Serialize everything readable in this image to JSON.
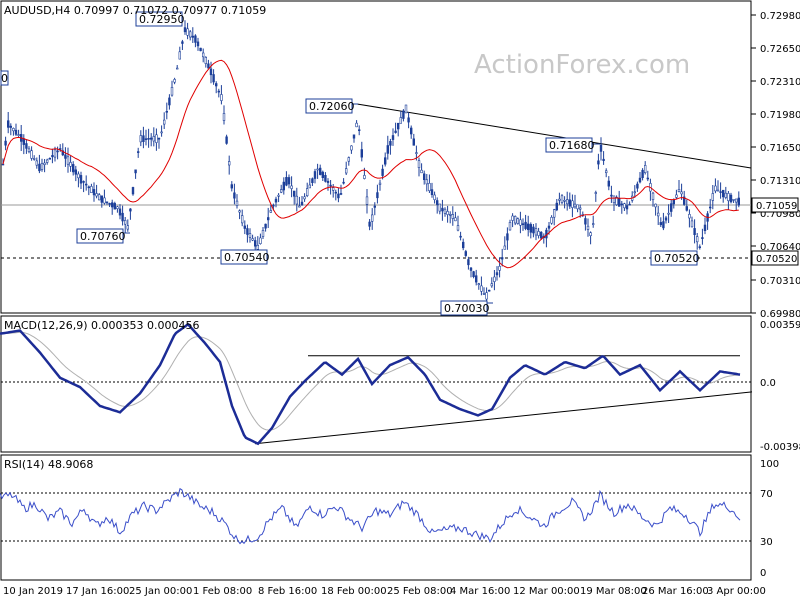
{
  "watermark": "ActionForex.com",
  "colors": {
    "candle": "#1c3f99",
    "sma": "#e00000",
    "macd": "#1c2c96",
    "signal": "#b0b0b0",
    "rsi": "#3a4ec9",
    "grid": "#000000",
    "box_border": "#1c3f99"
  },
  "x_labels": [
    "10 Jan 2019",
    "17 Jan 16:00",
    "25 Jan 00:00",
    "1 Feb 08:00",
    "8 Feb 16:00",
    "18 Feb 00:00",
    "25 Feb 08:00",
    "4 Mar 16:00",
    "12 Mar 00:00",
    "19 Mar 08:00",
    "26 Mar 16:00",
    "3 Apr 00:00"
  ],
  "chart_data": [
    {
      "type": "candlestick",
      "title": "AUDUSD,H4  0.70997 0.71072 0.70977 0.71059",
      "y_ticks": [
        "0.72980",
        "0.72650",
        "0.72310",
        "0.71980",
        "0.71650",
        "0.71310",
        "0.70980",
        "0.70640",
        "0.70310",
        "0.69980"
      ],
      "ylim": [
        0.6995,
        0.7308
      ],
      "current_price": "0.71059",
      "support_line": "0.70520",
      "price_labels": [
        "0.72950",
        "0.72060",
        "0.71680",
        "0.70760",
        "0.70540",
        "0.70520",
        "0.70030"
      ],
      "left_cut_label": "0",
      "ma_label": "",
      "key_points": [
        {
          "x": 0,
          "y": 0.712
        },
        {
          "x": 8,
          "y": 0.7185
        },
        {
          "x": 22,
          "y": 0.717
        },
        {
          "x": 40,
          "y": 0.714
        },
        {
          "x": 60,
          "y": 0.716
        },
        {
          "x": 80,
          "y": 0.713
        },
        {
          "x": 100,
          "y": 0.711
        },
        {
          "x": 118,
          "y": 0.71
        },
        {
          "x": 128,
          "y": 0.708
        },
        {
          "x": 140,
          "y": 0.717
        },
        {
          "x": 160,
          "y": 0.717
        },
        {
          "x": 175,
          "y": 0.723
        },
        {
          "x": 185,
          "y": 0.728
        },
        {
          "x": 196,
          "y": 0.727
        },
        {
          "x": 210,
          "y": 0.724
        },
        {
          "x": 222,
          "y": 0.721
        },
        {
          "x": 232,
          "y": 0.712
        },
        {
          "x": 245,
          "y": 0.708
        },
        {
          "x": 258,
          "y": 0.706
        },
        {
          "x": 272,
          "y": 0.71
        },
        {
          "x": 288,
          "y": 0.713
        },
        {
          "x": 300,
          "y": 0.71
        },
        {
          "x": 318,
          "y": 0.714
        },
        {
          "x": 340,
          "y": 0.711
        },
        {
          "x": 358,
          "y": 0.719
        },
        {
          "x": 370,
          "y": 0.708
        },
        {
          "x": 388,
          "y": 0.716
        },
        {
          "x": 406,
          "y": 0.72
        },
        {
          "x": 420,
          "y": 0.714
        },
        {
          "x": 440,
          "y": 0.71
        },
        {
          "x": 455,
          "y": 0.709
        },
        {
          "x": 470,
          "y": 0.704
        },
        {
          "x": 486,
          "y": 0.701
        },
        {
          "x": 500,
          "y": 0.704
        },
        {
          "x": 512,
          "y": 0.709
        },
        {
          "x": 530,
          "y": 0.708
        },
        {
          "x": 545,
          "y": 0.707
        },
        {
          "x": 560,
          "y": 0.711
        },
        {
          "x": 580,
          "y": 0.71
        },
        {
          "x": 592,
          "y": 0.707
        },
        {
          "x": 600,
          "y": 0.7165
        },
        {
          "x": 612,
          "y": 0.711
        },
        {
          "x": 628,
          "y": 0.71
        },
        {
          "x": 645,
          "y": 0.714
        },
        {
          "x": 662,
          "y": 0.708
        },
        {
          "x": 680,
          "y": 0.712
        },
        {
          "x": 700,
          "y": 0.706
        },
        {
          "x": 715,
          "y": 0.712
        },
        {
          "x": 730,
          "y": 0.711
        },
        {
          "x": 740,
          "y": 0.7106
        }
      ]
    },
    {
      "type": "line",
      "title": "MACD(12,26,9) 0.000353 0.000456",
      "y_ticks": [
        "0.003592",
        "0.0",
        "-0.003986"
      ],
      "ylim": [
        -0.0044,
        0.004
      ],
      "macd_points": [
        {
          "x": 0,
          "y": 0.003
        },
        {
          "x": 20,
          "y": 0.0032
        },
        {
          "x": 40,
          "y": 0.0018
        },
        {
          "x": 60,
          "y": 0.0002
        },
        {
          "x": 80,
          "y": -0.0004
        },
        {
          "x": 100,
          "y": -0.0016
        },
        {
          "x": 120,
          "y": -0.002
        },
        {
          "x": 140,
          "y": -0.0008
        },
        {
          "x": 160,
          "y": 0.001
        },
        {
          "x": 175,
          "y": 0.003
        },
        {
          "x": 188,
          "y": 0.0036
        },
        {
          "x": 205,
          "y": 0.0024
        },
        {
          "x": 220,
          "y": 0.0012
        },
        {
          "x": 232,
          "y": -0.0016
        },
        {
          "x": 245,
          "y": -0.0036
        },
        {
          "x": 258,
          "y": -0.004
        },
        {
          "x": 272,
          "y": -0.003
        },
        {
          "x": 290,
          "y": -0.001
        },
        {
          "x": 305,
          "y": 0.0
        },
        {
          "x": 325,
          "y": 0.0012
        },
        {
          "x": 342,
          "y": 0.0004
        },
        {
          "x": 358,
          "y": 0.0014
        },
        {
          "x": 372,
          "y": -0.0002
        },
        {
          "x": 390,
          "y": 0.001
        },
        {
          "x": 408,
          "y": 0.0015
        },
        {
          "x": 425,
          "y": 0.0004
        },
        {
          "x": 440,
          "y": -0.0012
        },
        {
          "x": 460,
          "y": -0.0018
        },
        {
          "x": 478,
          "y": -0.0022
        },
        {
          "x": 492,
          "y": -0.0018
        },
        {
          "x": 510,
          "y": 0.0002
        },
        {
          "x": 525,
          "y": 0.001
        },
        {
          "x": 545,
          "y": 0.0004
        },
        {
          "x": 565,
          "y": 0.0012
        },
        {
          "x": 585,
          "y": 0.0008
        },
        {
          "x": 603,
          "y": 0.0016
        },
        {
          "x": 620,
          "y": 0.0004
        },
        {
          "x": 640,
          "y": 0.001
        },
        {
          "x": 660,
          "y": -0.0006
        },
        {
          "x": 680,
          "y": 0.0006
        },
        {
          "x": 700,
          "y": -0.0006
        },
        {
          "x": 720,
          "y": 0.0006
        },
        {
          "x": 740,
          "y": 0.0004
        }
      ],
      "upper_line": {
        "x1": 308,
        "y1": 0.0016,
        "x2": 740,
        "y2": 0.0016
      },
      "trend_line": {
        "x1": 255,
        "y1": -0.004,
        "x2": 752,
        "y2": -0.0007
      }
    },
    {
      "type": "line",
      "title": "RSI(14) 48.9068",
      "y_ticks": [
        "100",
        "70",
        "30",
        "0"
      ],
      "ylim": [
        0,
        100
      ],
      "levels": [
        70,
        30
      ],
      "rsi_points": [
        {
          "x": 0,
          "y": 68
        },
        {
          "x": 12,
          "y": 70
        },
        {
          "x": 24,
          "y": 58
        },
        {
          "x": 36,
          "y": 62
        },
        {
          "x": 48,
          "y": 48
        },
        {
          "x": 60,
          "y": 55
        },
        {
          "x": 72,
          "y": 44
        },
        {
          "x": 84,
          "y": 58
        },
        {
          "x": 96,
          "y": 42
        },
        {
          "x": 108,
          "y": 50
        },
        {
          "x": 120,
          "y": 36
        },
        {
          "x": 132,
          "y": 52
        },
        {
          "x": 144,
          "y": 60
        },
        {
          "x": 156,
          "y": 56
        },
        {
          "x": 168,
          "y": 65
        },
        {
          "x": 180,
          "y": 74
        },
        {
          "x": 190,
          "y": 68
        },
        {
          "x": 200,
          "y": 60
        },
        {
          "x": 212,
          "y": 55
        },
        {
          "x": 224,
          "y": 45
        },
        {
          "x": 236,
          "y": 30
        },
        {
          "x": 246,
          "y": 28
        },
        {
          "x": 258,
          "y": 32
        },
        {
          "x": 270,
          "y": 48
        },
        {
          "x": 282,
          "y": 58
        },
        {
          "x": 296,
          "y": 40
        },
        {
          "x": 310,
          "y": 60
        },
        {
          "x": 322,
          "y": 52
        },
        {
          "x": 336,
          "y": 60
        },
        {
          "x": 350,
          "y": 48
        },
        {
          "x": 362,
          "y": 40
        },
        {
          "x": 376,
          "y": 56
        },
        {
          "x": 390,
          "y": 52
        },
        {
          "x": 404,
          "y": 64
        },
        {
          "x": 418,
          "y": 52
        },
        {
          "x": 432,
          "y": 35
        },
        {
          "x": 446,
          "y": 38
        },
        {
          "x": 460,
          "y": 40
        },
        {
          "x": 476,
          "y": 34
        },
        {
          "x": 490,
          "y": 30
        },
        {
          "x": 502,
          "y": 44
        },
        {
          "x": 516,
          "y": 58
        },
        {
          "x": 530,
          "y": 50
        },
        {
          "x": 544,
          "y": 42
        },
        {
          "x": 558,
          "y": 56
        },
        {
          "x": 572,
          "y": 64
        },
        {
          "x": 586,
          "y": 48
        },
        {
          "x": 600,
          "y": 70
        },
        {
          "x": 614,
          "y": 54
        },
        {
          "x": 628,
          "y": 62
        },
        {
          "x": 642,
          "y": 50
        },
        {
          "x": 656,
          "y": 42
        },
        {
          "x": 670,
          "y": 58
        },
        {
          "x": 686,
          "y": 52
        },
        {
          "x": 700,
          "y": 36
        },
        {
          "x": 714,
          "y": 62
        },
        {
          "x": 728,
          "y": 60
        },
        {
          "x": 740,
          "y": 49
        }
      ]
    }
  ]
}
